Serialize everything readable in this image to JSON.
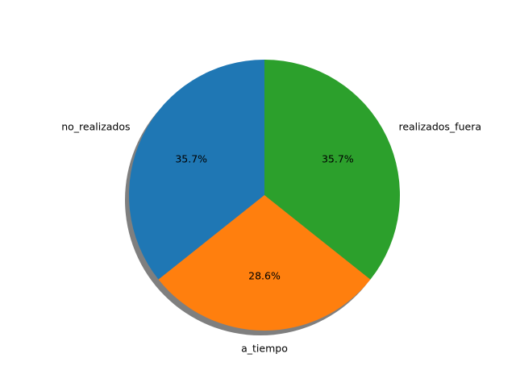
{
  "chart_data": {
    "type": "pie",
    "labels": [
      "no_realizados",
      "a_tiempo",
      "realizados_fuera"
    ],
    "values": [
      35.7,
      28.6,
      35.7
    ],
    "percent_labels": [
      "35.7%",
      "28.6%",
      "35.7%"
    ],
    "colors": [
      "#1f77b4",
      "#ff7f0e",
      "#2ca02c"
    ],
    "start_angle": 90,
    "direction": "counterclockwise",
    "shadow": true,
    "title": ""
  }
}
